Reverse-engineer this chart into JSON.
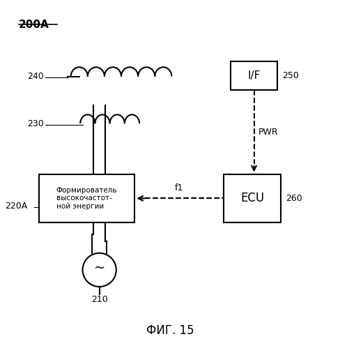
{
  "background_color": "#ffffff",
  "line_color": "#000000",
  "figsize": [
    4.88,
    4.99
  ],
  "dpi": 100,
  "labels": {
    "main_title": "200A",
    "label_240": "240",
    "label_230": "230",
    "label_220A": "220A",
    "label_210": "210",
    "label_250": "250",
    "label_260": "260",
    "label_if": "I/F",
    "label_ecu": "ECU",
    "label_pwr": "PWR",
    "label_f1": "f1",
    "box_text": "Формирователь\nвысокочастот-\nной энергии",
    "fig_caption": "ФИГ. 15"
  }
}
